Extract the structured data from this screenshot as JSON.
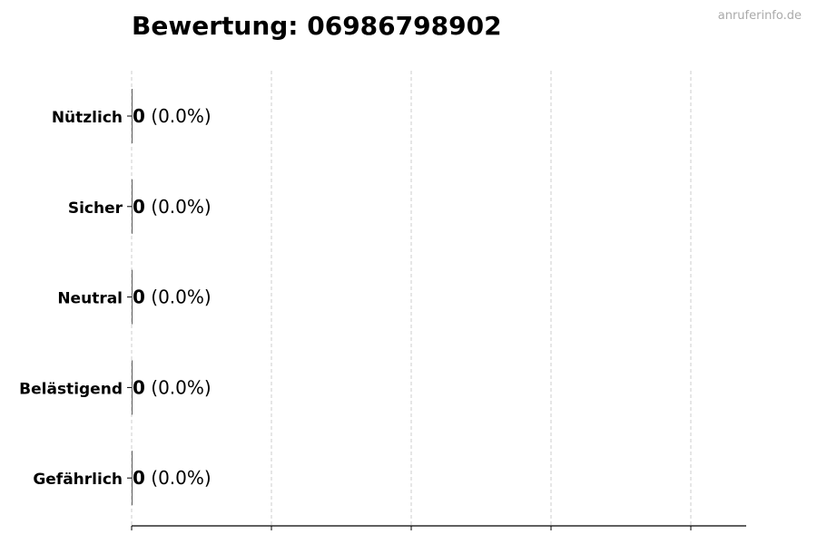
{
  "watermark": "anruferinfo.de",
  "chart_data": {
    "type": "bar",
    "orientation": "horizontal",
    "title": "Bewertung: 06986798902",
    "categories": [
      "Nützlich",
      "Sicher",
      "Neutral",
      "Belästigend",
      "Gefährlich"
    ],
    "values": [
      0,
      0,
      0,
      0,
      0
    ],
    "value_labels": [
      "0",
      "0",
      "0",
      "0",
      "0"
    ],
    "percent_labels": [
      "(0.0%)",
      "(0.0%)",
      "(0.0%)",
      "(0.0%)",
      "(0.0%)"
    ],
    "xlabel": "",
    "ylabel": "",
    "xtick_labels": [],
    "grid": "x, dashed",
    "legend": "none"
  }
}
